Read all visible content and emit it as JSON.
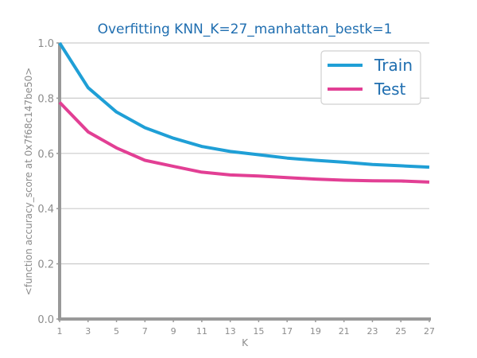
{
  "chart_data": {
    "type": "line",
    "title": "Overfitting KNN_K=27_manhattan_bestk=1",
    "xlabel": "K",
    "ylabel": "<function accuracy_score at 0x7f68c147be50>",
    "x": [
      1,
      3,
      5,
      7,
      9,
      11,
      13,
      15,
      17,
      19,
      21,
      23,
      25,
      27
    ],
    "x_ticks": [
      "1",
      "3",
      "5",
      "7",
      "9",
      "11",
      "13",
      "15",
      "17",
      "19",
      "21",
      "23",
      "25",
      "27"
    ],
    "y_ticks": [
      "0.0",
      "0.2",
      "0.4",
      "0.6",
      "0.8",
      "1.0"
    ],
    "xlim": [
      1,
      27
    ],
    "ylim": [
      0,
      1
    ],
    "grid": "horizontal",
    "legend_position": "top-right",
    "series": [
      {
        "name": "Train",
        "color": "#1f9fd6",
        "values": [
          1.0,
          0.838,
          0.75,
          0.693,
          0.655,
          0.625,
          0.607,
          0.595,
          0.583,
          0.575,
          0.568,
          0.56,
          0.555,
          0.55
        ]
      },
      {
        "name": "Test",
        "color": "#e23f94",
        "values": [
          0.785,
          0.678,
          0.62,
          0.575,
          0.553,
          0.532,
          0.522,
          0.518,
          0.512,
          0.507,
          0.503,
          0.501,
          0.5,
          0.496
        ]
      }
    ]
  }
}
